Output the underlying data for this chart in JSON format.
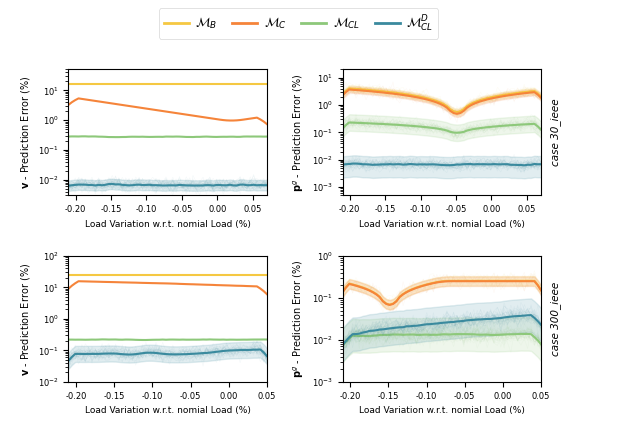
{
  "legend_labels": [
    "$\\mathcal{M}_B$",
    "$\\mathcal{M}_C$",
    "$\\mathcal{M}_{CL}$",
    "$\\mathcal{M}_{CL}^D$"
  ],
  "colors": {
    "MB": "#f5c842",
    "MC": "#f5843a",
    "MCL": "#8dc87a",
    "MCLD": "#3a8a9e"
  },
  "xlabel": "Load Variation w.r.t. nomial Load (%)",
  "ylabels_left": [
    "$\\mathbf{v}$ - Prediction Error (%)",
    "$\\mathbf{v}$ - Prediction Error (%)"
  ],
  "ylabels_right": [
    "$\\mathbf{p}^g$ - Prediction Error (%)",
    "$\\mathbf{p}^g$ - Prediction Error (%)"
  ],
  "case_labels": [
    "case 30_ieee",
    "case 300_ieee"
  ],
  "n_points": 60
}
